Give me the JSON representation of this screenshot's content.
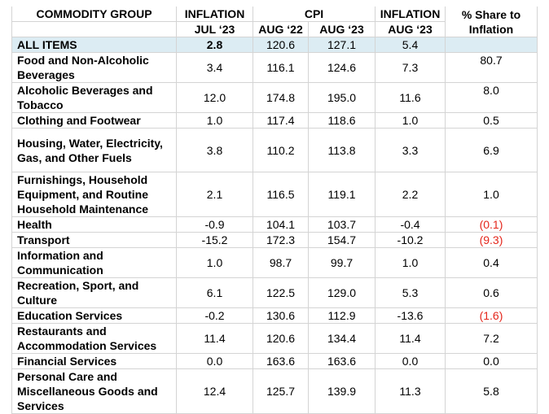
{
  "header": {
    "group": "COMMODITY GROUP",
    "inflation1": "INFLATION",
    "cpi": "CPI",
    "inflation2": "INFLATION",
    "share_line1": "% Share to",
    "share_line2": "Inflation",
    "sub_jul23": "JUL ‘23",
    "sub_aug22": "AUG ‘22",
    "sub_aug23": "AUG ‘23",
    "sub_aug23b": "AUG ‘23"
  },
  "rows": [
    {
      "name": "ALL ITEMS",
      "jul": "2.8",
      "cpi22": "120.6",
      "cpi23": "127.1",
      "aug": "5.4",
      "share": ""
    },
    {
      "name": "Food and Non-Alcoholic Beverages",
      "jul": "3.4",
      "cpi22": "116.1",
      "cpi23": "124.6",
      "aug": "7.3",
      "share": "80.7"
    },
    {
      "name": "Alcoholic Beverages and Tobacco",
      "jul": "12.0",
      "cpi22": "174.8",
      "cpi23": "195.0",
      "aug": "11.6",
      "share": "8.0"
    },
    {
      "name": "Clothing and Footwear",
      "jul": "1.0",
      "cpi22": "117.4",
      "cpi23": "118.6",
      "aug": "1.0",
      "share": "0.5"
    },
    {
      "name": "Housing, Water, Electricity, Gas, and Other Fuels",
      "jul": "3.8",
      "cpi22": "110.2",
      "cpi23": "113.8",
      "aug": "3.3",
      "share": "6.9"
    },
    {
      "name": "Furnishings, Household Equipment, and Routine Household Maintenance",
      "jul": "2.1",
      "cpi22": "116.5",
      "cpi23": "119.1",
      "aug": "2.2",
      "share": "1.0"
    },
    {
      "name": "Health",
      "jul": "-0.9",
      "cpi22": "104.1",
      "cpi23": "103.7",
      "aug": "-0.4",
      "share": "(0.1)"
    },
    {
      "name": "Transport",
      "jul": "-15.2",
      "cpi22": "172.3",
      "cpi23": "154.7",
      "aug": "-10.2",
      "share": "(9.3)"
    },
    {
      "name": "Information and Communication",
      "jul": "1.0",
      "cpi22": "98.7",
      "cpi23": "99.7",
      "aug": "1.0",
      "share": "0.4"
    },
    {
      "name": "Recreation, Sport, and Culture",
      "jul": "6.1",
      "cpi22": "122.5",
      "cpi23": "129.0",
      "aug": "5.3",
      "share": "0.6"
    },
    {
      "name": "Education Services",
      "jul": "-0.2",
      "cpi22": "130.6",
      "cpi23": "112.9",
      "aug": "-13.6",
      "share": "(1.6)"
    },
    {
      "name": "Restaurants and Accommodation Services",
      "jul": "11.4",
      "cpi22": "120.6",
      "cpi23": "134.4",
      "aug": "11.4",
      "share": "7.2"
    },
    {
      "name": "Financial Services",
      "jul": "0.0",
      "cpi22": "163.6",
      "cpi23": "163.6",
      "aug": "0.0",
      "share": "0.0"
    },
    {
      "name": "Personal Care and Miscellaneous Goods and Services",
      "jul": "12.4",
      "cpi22": "125.7",
      "cpi23": "139.9",
      "aug": "11.3",
      "share": "5.8"
    }
  ],
  "negative_color": "#e4261b",
  "highlight_color": "#dcecf3"
}
